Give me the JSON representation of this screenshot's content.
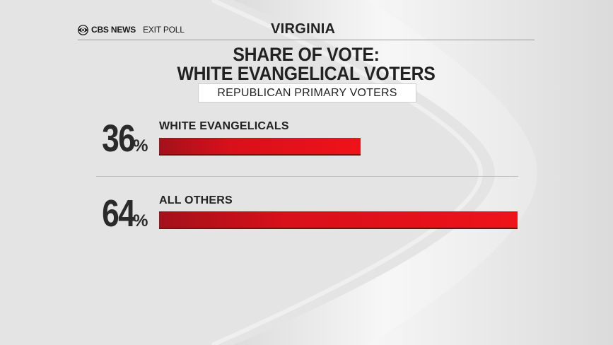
{
  "header": {
    "network": "CBS NEWS",
    "product": "EXIT POLL",
    "state": "VIRGINIA"
  },
  "icons": {
    "brand": "cbs-eye-icon"
  },
  "colors": {
    "bar": "#e8111a",
    "text": "#222222",
    "background": "#e6e6e6"
  },
  "chart_data": {
    "type": "bar",
    "orientation": "horizontal",
    "title": "SHARE OF VOTE:",
    "title_line2": "WHITE EVANGELICAL VOTERS",
    "subtitle": "REPUBLICAN PRIMARY VOTERS",
    "categories": [
      "WHITE EVANGELICALS",
      "ALL OTHERS"
    ],
    "values": [
      36,
      64
    ],
    "value_labels": [
      "36",
      "64"
    ],
    "unit": "%",
    "xlim": [
      0,
      64
    ],
    "grid": false
  }
}
